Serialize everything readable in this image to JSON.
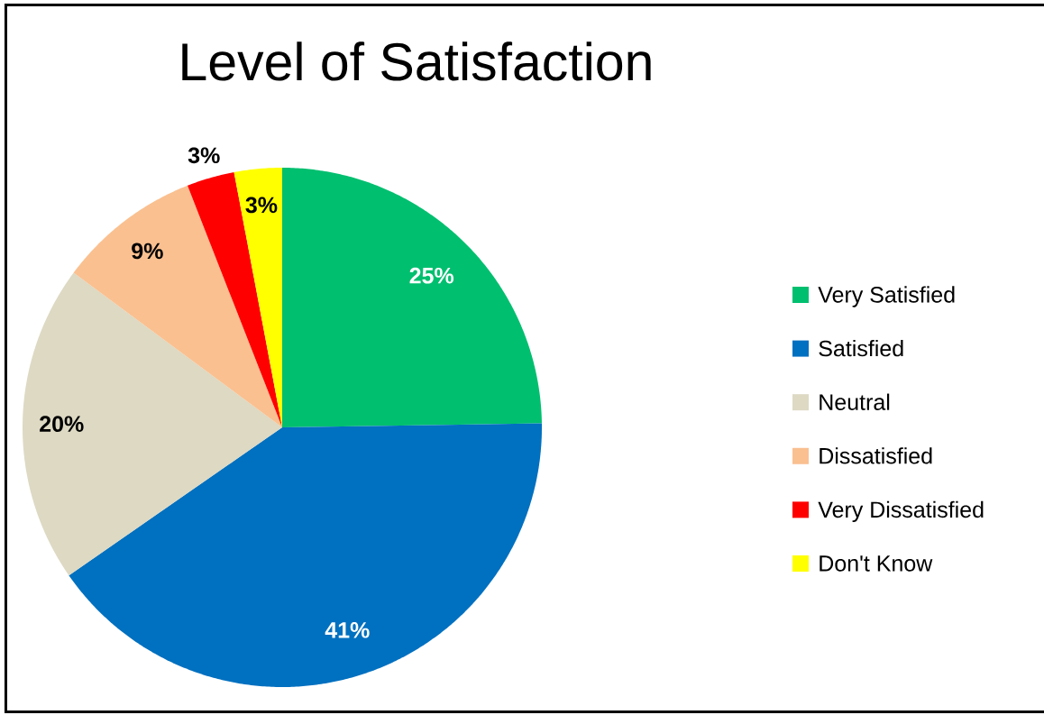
{
  "chart_data": {
    "type": "pie",
    "title": "Level of Satisfaction",
    "categories": [
      "Very Satisfied",
      "Satisfied",
      "Neutral",
      "Dissatisfied",
      "Very Dissatisfied",
      "Don't Know"
    ],
    "values": [
      25,
      41,
      20,
      9,
      3,
      3
    ],
    "colors": [
      "#00bf6f",
      "#0070c0",
      "#ddd9c3",
      "#fac090",
      "#ff0000",
      "#ffff00"
    ],
    "value_labels": [
      "25%",
      "41%",
      "20%",
      "9%",
      "3%",
      "3%"
    ],
    "legend": "right"
  }
}
